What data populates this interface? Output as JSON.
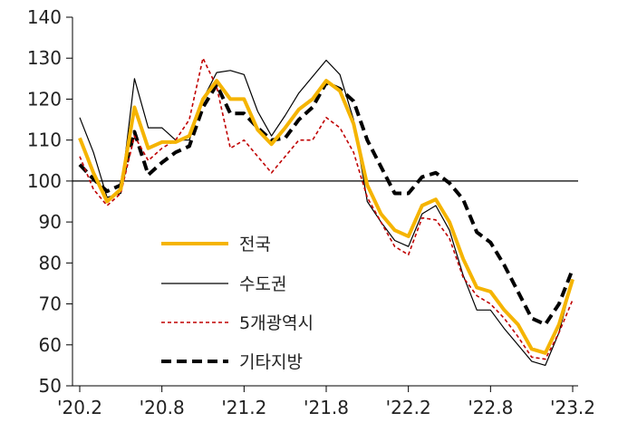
{
  "chart_data": {
    "type": "line",
    "title": "",
    "xlabel": "",
    "ylabel": "",
    "ylim": [
      50,
      140
    ],
    "yticks": [
      50,
      60,
      70,
      80,
      90,
      100,
      110,
      120,
      130,
      140
    ],
    "ytick_labels": [
      "50",
      "60",
      "70",
      "80",
      "90",
      "100",
      "110",
      "120",
      "130",
      "140"
    ],
    "xtick_labels": [
      "'20.2",
      "'20.8",
      "'21.2",
      "'21.8",
      "'22.2",
      "'22.8",
      "'23.2"
    ],
    "xtick_indices": [
      0,
      6,
      12,
      18,
      24,
      30,
      36
    ],
    "reference_line": 100,
    "categories": [
      "2020-02",
      "2020-03",
      "2020-04",
      "2020-05",
      "2020-06",
      "2020-07",
      "2020-08",
      "2020-09",
      "2020-10",
      "2020-11",
      "2020-12",
      "2021-01",
      "2021-02",
      "2021-03",
      "2021-04",
      "2021-05",
      "2021-06",
      "2021-07",
      "2021-08",
      "2021-09",
      "2021-10",
      "2021-11",
      "2021-12",
      "2022-01",
      "2022-02",
      "2022-03",
      "2022-04",
      "2022-05",
      "2022-06",
      "2022-07",
      "2022-08",
      "2022-09",
      "2022-10",
      "2022-11",
      "2022-12",
      "2023-01",
      "2023-02"
    ],
    "series": [
      {
        "name": "전국",
        "color": "#f5b400",
        "style": "solid-thick",
        "values": [
          110.5,
          102,
          95,
          98,
          118,
          108,
          109.5,
          109.5,
          111,
          120,
          124.5,
          120,
          120,
          112.5,
          109,
          113,
          117.5,
          120,
          124.5,
          122,
          114,
          99,
          92,
          88,
          86.5,
          94,
          95.5,
          90,
          81,
          74,
          73,
          68.5,
          65,
          59,
          58,
          65,
          76
        ]
      },
      {
        "name": "수도권",
        "color": "#000000",
        "style": "solid-thin",
        "values": [
          115.5,
          107,
          96,
          97,
          125,
          113,
          113,
          110,
          110,
          120,
          126.5,
          127,
          126,
          117,
          111,
          116,
          121.5,
          125.5,
          129.5,
          126,
          115,
          95,
          90,
          85.5,
          84,
          92,
          94,
          88,
          77,
          68.5,
          68.5,
          64,
          60,
          56,
          55,
          63,
          76
        ]
      },
      {
        "name": "5개광역시",
        "color": "#c00000",
        "style": "dotted",
        "values": [
          106,
          98,
          94,
          97,
          111,
          105,
          108,
          110,
          115,
          130,
          123,
          108,
          110,
          106,
          102,
          106,
          110,
          110,
          115.5,
          113,
          107,
          96,
          90,
          84,
          82,
          91,
          90.5,
          86,
          76.5,
          72,
          70,
          66.5,
          62,
          57,
          56.5,
          63,
          71
        ]
      },
      {
        "name": "기타지방",
        "color": "#000000",
        "style": "dashed-thick",
        "values": [
          104,
          100.5,
          97.5,
          99,
          112,
          101.5,
          104.5,
          107,
          108.5,
          118,
          123.5,
          116.5,
          116.5,
          113,
          110,
          110.5,
          115,
          118,
          124,
          122.5,
          119.5,
          110,
          103.5,
          97,
          97,
          101,
          102,
          99.5,
          95.5,
          87.5,
          85,
          79.5,
          73,
          66.5,
          65,
          70,
          78.5
        ]
      }
    ],
    "legend": {
      "placement": "center-left",
      "entries": [
        "전국",
        "수도권",
        "5개광역시",
        "기타지방"
      ]
    }
  }
}
